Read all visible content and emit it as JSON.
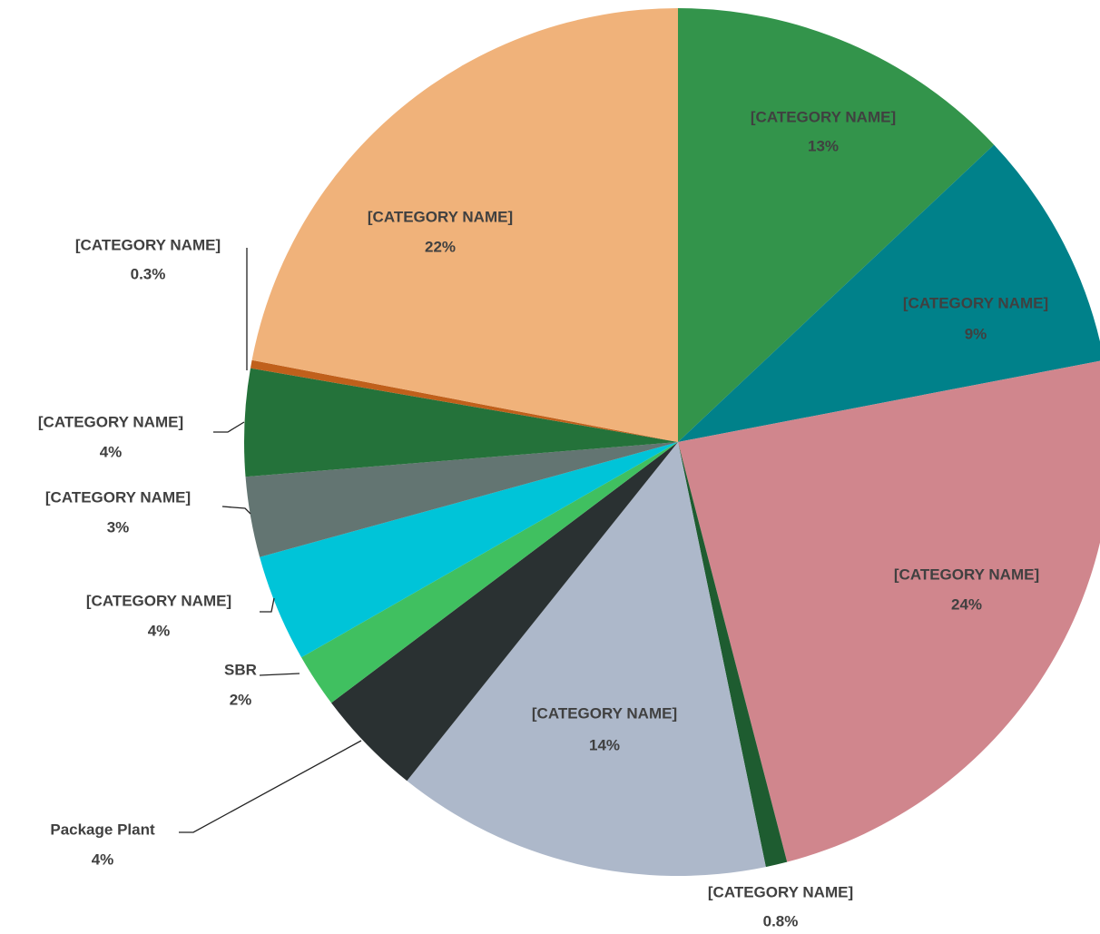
{
  "chart_data": {
    "type": "pie",
    "categories": [
      "[CATEGORY NAME]",
      "[CATEGORY NAME]",
      "[CATEGORY NAME]",
      "[CATEGORY NAME]",
      "[CATEGORY NAME]",
      "Package Plant",
      "SBR",
      "[CATEGORY NAME]",
      "[CATEGORY NAME]",
      "[CATEGORY NAME]",
      "[CATEGORY NAME]",
      "[CATEGORY NAME]"
    ],
    "values": [
      13,
      9,
      24,
      0.8,
      14,
      4,
      2,
      4,
      3,
      4,
      0.3,
      22
    ],
    "value_labels": [
      "13%",
      "9%",
      "24%",
      "0.8%",
      "14%",
      "4%",
      "2%",
      "4%",
      "3%",
      "4%",
      "0.3%",
      "22%"
    ],
    "colors": [
      "#33944b",
      "#00818a",
      "#d0868d",
      "#1e5c30",
      "#adb8ca",
      "#2a3132",
      "#40c060",
      "#00c4d8",
      "#637572",
      "#24723a",
      "#c0601b",
      "#f0b27a"
    ]
  }
}
